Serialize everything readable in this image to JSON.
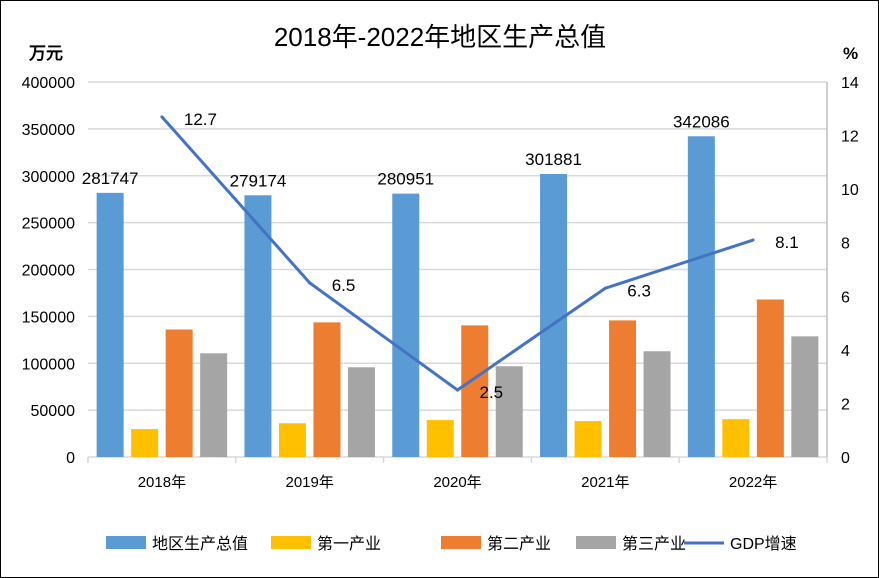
{
  "chart_data": {
    "type": "bar",
    "title": "2018年-2022年地区生产总值",
    "ylabel": "万元",
    "y2label": "%",
    "ylim": [
      0,
      400000
    ],
    "y2lim": [
      0,
      14
    ],
    "yticks": [
      "0",
      "50000",
      "100000",
      "150000",
      "200000",
      "250000",
      "300000",
      "350000",
      "400000"
    ],
    "y2ticks": [
      "0",
      "2",
      "4",
      "6",
      "8",
      "10",
      "12",
      "14"
    ],
    "categories": [
      "2018年",
      "2019年",
      "2020年",
      "2021年",
      "2022年"
    ],
    "series": [
      {
        "name": "地区生产总值",
        "type": "bar",
        "color": "#5b9bd5",
        "values": [
          281747,
          279174,
          280951,
          301881,
          342086
        ],
        "labels": [
          "281747",
          "279174",
          "280951",
          "301881",
          "342086"
        ]
      },
      {
        "name": "第一产业",
        "type": "bar",
        "color": "#ffc000",
        "values": [
          29800,
          36000,
          39400,
          38300,
          40400
        ]
      },
      {
        "name": "第二产业",
        "type": "bar",
        "color": "#ed7d31",
        "values": [
          136000,
          143600,
          140400,
          145700,
          168000
        ]
      },
      {
        "name": "第三产业",
        "type": "bar",
        "color": "#a5a5a5",
        "values": [
          110600,
          95700,
          96800,
          112800,
          128700
        ]
      },
      {
        "name": "GDP增速",
        "type": "line",
        "axis": "right",
        "color": "#4472c4",
        "values": [
          12.7,
          6.5,
          2.5,
          6.3,
          8.1
        ],
        "labels": [
          "12.7",
          "6.5",
          "2.5",
          "6.3",
          "8.1"
        ]
      }
    ],
    "grid": true,
    "legend": "bottom"
  }
}
